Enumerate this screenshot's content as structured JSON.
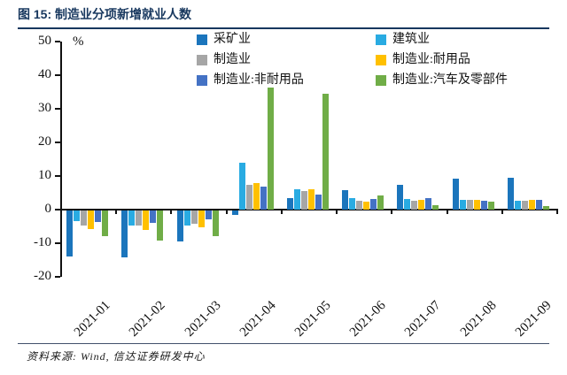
{
  "title": "图 15: 制造业分项新增就业人数",
  "source_note": "资料来源: Wind, 信达证券研发中心",
  "accent_color": "#17375E",
  "chart_data": {
    "type": "bar",
    "title": "制造业分项新增就业人数",
    "unit_label": "%",
    "xlabel": "",
    "ylabel": "%",
    "ylim": [
      -20,
      50
    ],
    "ytick_interval": 10,
    "grid": false,
    "legend_position": "top",
    "categories": [
      "2021-01",
      "2021-02",
      "2021-03",
      "2021-04",
      "2021-05",
      "2021-06",
      "2021-07",
      "2021-08",
      "2021-09"
    ],
    "series": [
      {
        "name": "采矿业",
        "color": "#1B75BC",
        "values": [
          -13.7,
          -14.0,
          -9.3,
          -1.3,
          3.4,
          5.8,
          7.3,
          9.1,
          9.4
        ]
      },
      {
        "name": "建筑业",
        "color": "#29ABE2",
        "values": [
          -3.2,
          -4.6,
          -4.5,
          13.9,
          6.0,
          3.3,
          3.2,
          2.9,
          2.6
        ]
      },
      {
        "name": "制造业",
        "color": "#A6A6A6",
        "values": [
          -4.6,
          -4.6,
          -3.9,
          7.4,
          5.4,
          2.6,
          2.7,
          2.9,
          2.7
        ]
      },
      {
        "name": "制造业:耐用品",
        "color": "#FFC000",
        "values": [
          -5.6,
          -5.8,
          -5.0,
          7.8,
          6.1,
          2.4,
          2.9,
          3.0,
          2.8
        ]
      },
      {
        "name": "制造业:非耐用品",
        "color": "#4472C4",
        "values": [
          -3.5,
          -3.7,
          -2.5,
          6.8,
          4.6,
          3.2,
          3.3,
          2.7,
          3.0
        ]
      },
      {
        "name": "制造业:汽车及零部件",
        "color": "#70AD47",
        "values": [
          -7.5,
          -9.0,
          -7.6,
          36.2,
          34.5,
          4.3,
          1.2,
          2.4,
          1.0
        ]
      }
    ]
  }
}
